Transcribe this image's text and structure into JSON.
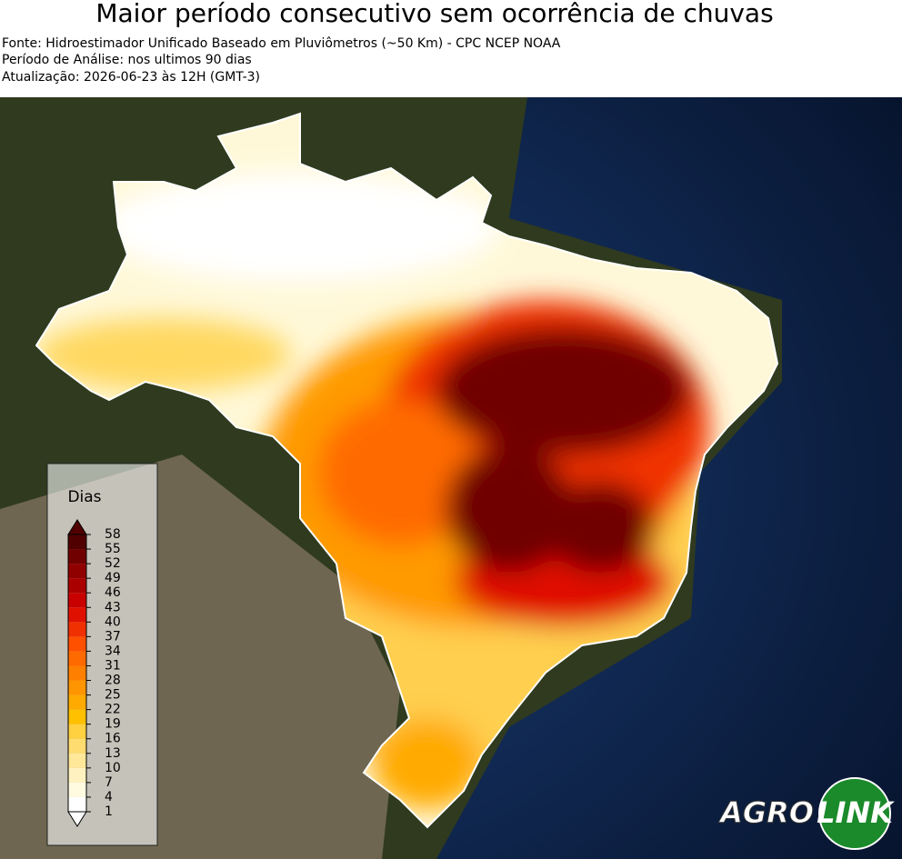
{
  "header": {
    "title": "Maior período consecutivo sem ocorrência de chuvas",
    "lines": [
      "Fonte: Hidroestimador Unificado Baseado em Pluviômetros (~50 Km) - CPC NCEP NOAA",
      "Período de Análise: nos ultimos 90 dias",
      "Atualização: 2026-06-23 às 12H (GMT-3)"
    ]
  },
  "legend": {
    "title": "Dias",
    "ticks": [
      1,
      4,
      7,
      10,
      13,
      16,
      19,
      22,
      25,
      28,
      31,
      34,
      37,
      40,
      43,
      46,
      49,
      52,
      55,
      58
    ],
    "colors": [
      "#ffffff",
      "#fffbe0",
      "#fff2c0",
      "#ffe89a",
      "#ffdc70",
      "#ffd040",
      "#ffc000",
      "#ffaa00",
      "#ff9500",
      "#ff8000",
      "#ff6a00",
      "#ff5000",
      "#f03000",
      "#e01000",
      "#c80000",
      "#aa0000",
      "#900000",
      "#700000",
      "#500000"
    ]
  },
  "logo": {
    "left": "AGRO",
    "right": "LINK"
  }
}
